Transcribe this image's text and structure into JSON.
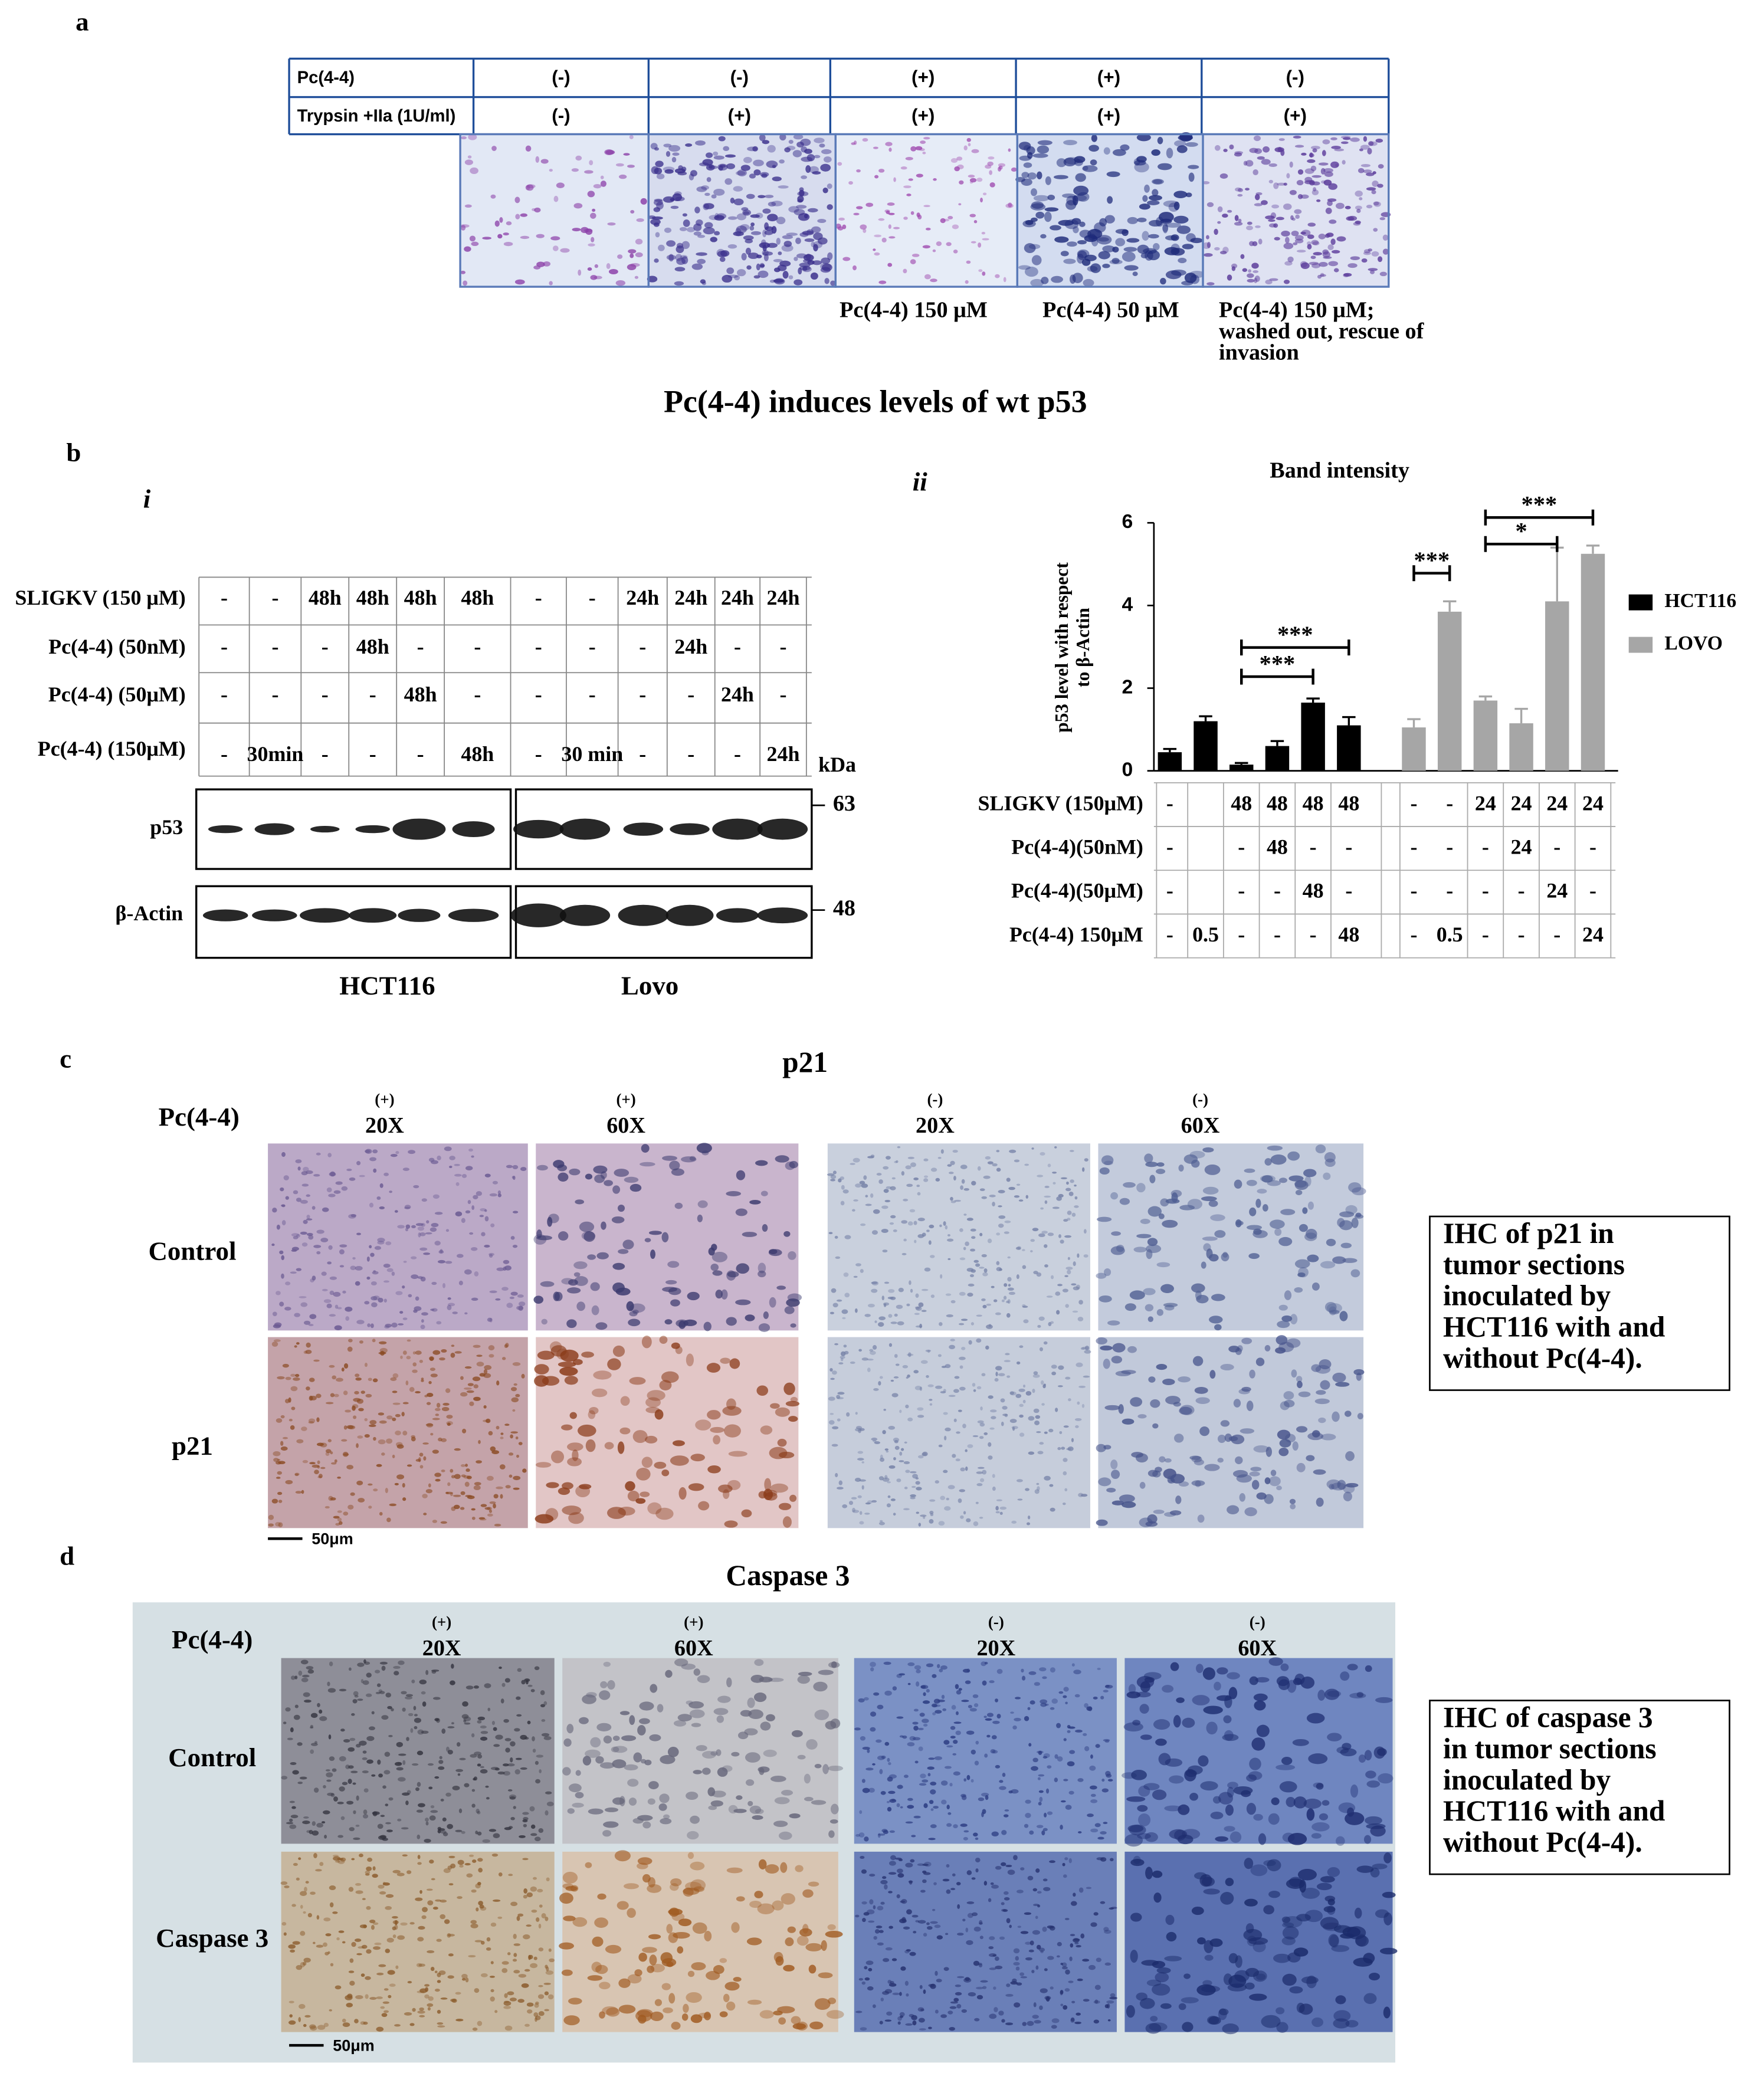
{
  "panel_letters": {
    "a": "a",
    "b": "b",
    "b_i": "i",
    "b_ii": "ii",
    "c": "c",
    "d": "d"
  },
  "panel_a": {
    "rows": [
      {
        "label": "Pc(4-4)",
        "cells": [
          "(-)",
          "(-)",
          "(+)",
          "(+)",
          "(-)"
        ]
      },
      {
        "label": "Trypsin +IIa (1U/ml)",
        "cells": [
          "(-)",
          "(+)",
          "(+)",
          "(+)",
          "(+)"
        ]
      }
    ],
    "captions": [
      [
        "Pc(4-4) 150 μM"
      ],
      [
        "Pc(4-4) 50 μM"
      ],
      [
        "Pc(4-4) 150 μM;",
        "washed out, rescue of",
        "invasion"
      ]
    ]
  },
  "panel_b_title": "Pc(4-4) induces levels of wt p53",
  "panel_b_i": {
    "rows": [
      {
        "label": "SLIGKV (150 μM)",
        "cells": [
          "-",
          "-",
          "48h",
          "48h",
          "48h",
          "48h",
          "-",
          "-",
          "24h",
          "24h",
          "24h",
          "24h"
        ]
      },
      {
        "label": "Pc(4-4) (50nM)",
        "cells": [
          "-",
          "-",
          "-",
          "48h",
          "-",
          "-",
          "-",
          "-",
          "-",
          "24h",
          "-",
          "-"
        ]
      },
      {
        "label": "Pc(4-4) (50μM)",
        "cells": [
          "-",
          "-",
          "-",
          "-",
          "48h",
          "-",
          "-",
          "-",
          "-",
          "-",
          "24h",
          "-"
        ]
      },
      {
        "label": "Pc(4-4) (150μM)",
        "cells": [
          "-",
          "30min",
          "-",
          "-",
          "-",
          "48h",
          "-",
          "30 min",
          "-",
          "-",
          "-",
          "24h"
        ]
      }
    ],
    "unit": "kDa",
    "blots": [
      {
        "label": "p53",
        "marker": "63"
      },
      {
        "label": "β-Actin",
        "marker": "48"
      }
    ],
    "cell_lines": [
      "HCT116",
      "Lovo"
    ]
  },
  "chart_data": {
    "type": "bar",
    "title": "Band intensity",
    "y_label": [
      "p53 level with respect",
      "to β-Actin"
    ],
    "categories": [
      null,
      null,
      null,
      null,
      null,
      null,
      null,
      null,
      null,
      null,
      null,
      null
    ],
    "series": [
      {
        "name": "HCT116",
        "color": "#000000",
        "values": [
          0.45,
          1.2,
          0.15,
          0.6,
          1.65,
          1.1,
          null,
          null,
          null,
          null,
          null,
          null
        ],
        "errors": [
          0.08,
          0.12,
          0.04,
          0.12,
          0.1,
          0.2,
          null,
          null,
          null,
          null,
          null,
          null
        ]
      },
      {
        "name": "LOVO",
        "color": "#a6a6a6",
        "values": [
          null,
          null,
          null,
          null,
          null,
          null,
          1.05,
          3.85,
          1.7,
          1.15,
          4.1,
          5.25
        ],
        "errors": [
          null,
          null,
          null,
          null,
          null,
          null,
          0.2,
          0.25,
          0.1,
          0.35,
          1.3,
          0.2
        ]
      }
    ],
    "ylim": [
      0,
      6
    ],
    "yticks": [
      0,
      2,
      4,
      6
    ],
    "annotations": [
      "***",
      "***",
      "***",
      "*",
      "***"
    ],
    "table": [
      {
        "label": "SLIGKV (150μM)",
        "cells": [
          "-",
          null,
          "48",
          "48",
          "48",
          "48",
          "-",
          "-",
          "24",
          "24",
          "24",
          "24"
        ]
      },
      {
        "label": "Pc(4-4)(50nM)",
        "cells": [
          "-",
          null,
          "-",
          "48",
          "-",
          "-",
          "-",
          "-",
          "-",
          "24",
          "-",
          "-"
        ]
      },
      {
        "label": "Pc(4-4)(50μM)",
        "cells": [
          "-",
          null,
          "-",
          "-",
          "48",
          "-",
          "-",
          "-",
          "-",
          "-",
          "24",
          "-"
        ]
      },
      {
        "label": "Pc(4-4) 150μM",
        "cells": [
          "-",
          "0.5",
          "-",
          "-",
          "-",
          "48",
          "-",
          "0.5",
          "-",
          "-",
          "-",
          "24"
        ]
      }
    ]
  },
  "panel_c": {
    "title": "p21",
    "treatment": "Pc(4-4)",
    "columns": [
      {
        "sign": "(+)",
        "mag": "20X"
      },
      {
        "sign": "(+)",
        "mag": "60X"
      },
      {
        "sign": "(-)",
        "mag": "20X"
      },
      {
        "sign": "(-)",
        "mag": "60X"
      }
    ],
    "rows": [
      "Control",
      "p21"
    ],
    "scale": "50μm",
    "note": [
      "IHC of p21 in",
      "tumor sections",
      "inoculated by",
      "HCT116 with and",
      "without Pc(4-4)."
    ]
  },
  "panel_d": {
    "title": "Caspase 3",
    "treatment": "Pc(4-4)",
    "columns": [
      {
        "sign": "(+)",
        "mag": "20X"
      },
      {
        "sign": "(+)",
        "mag": "60X"
      },
      {
        "sign": "(-)",
        "mag": "20X"
      },
      {
        "sign": "(-)",
        "mag": "60X"
      }
    ],
    "rows": [
      "Control",
      "Caspase 3"
    ],
    "scale": "50μm",
    "note": [
      "IHC of caspase 3",
      "in tumor sections",
      "inoculated by",
      "HCT116 with and",
      "without Pc(4-4)."
    ]
  }
}
